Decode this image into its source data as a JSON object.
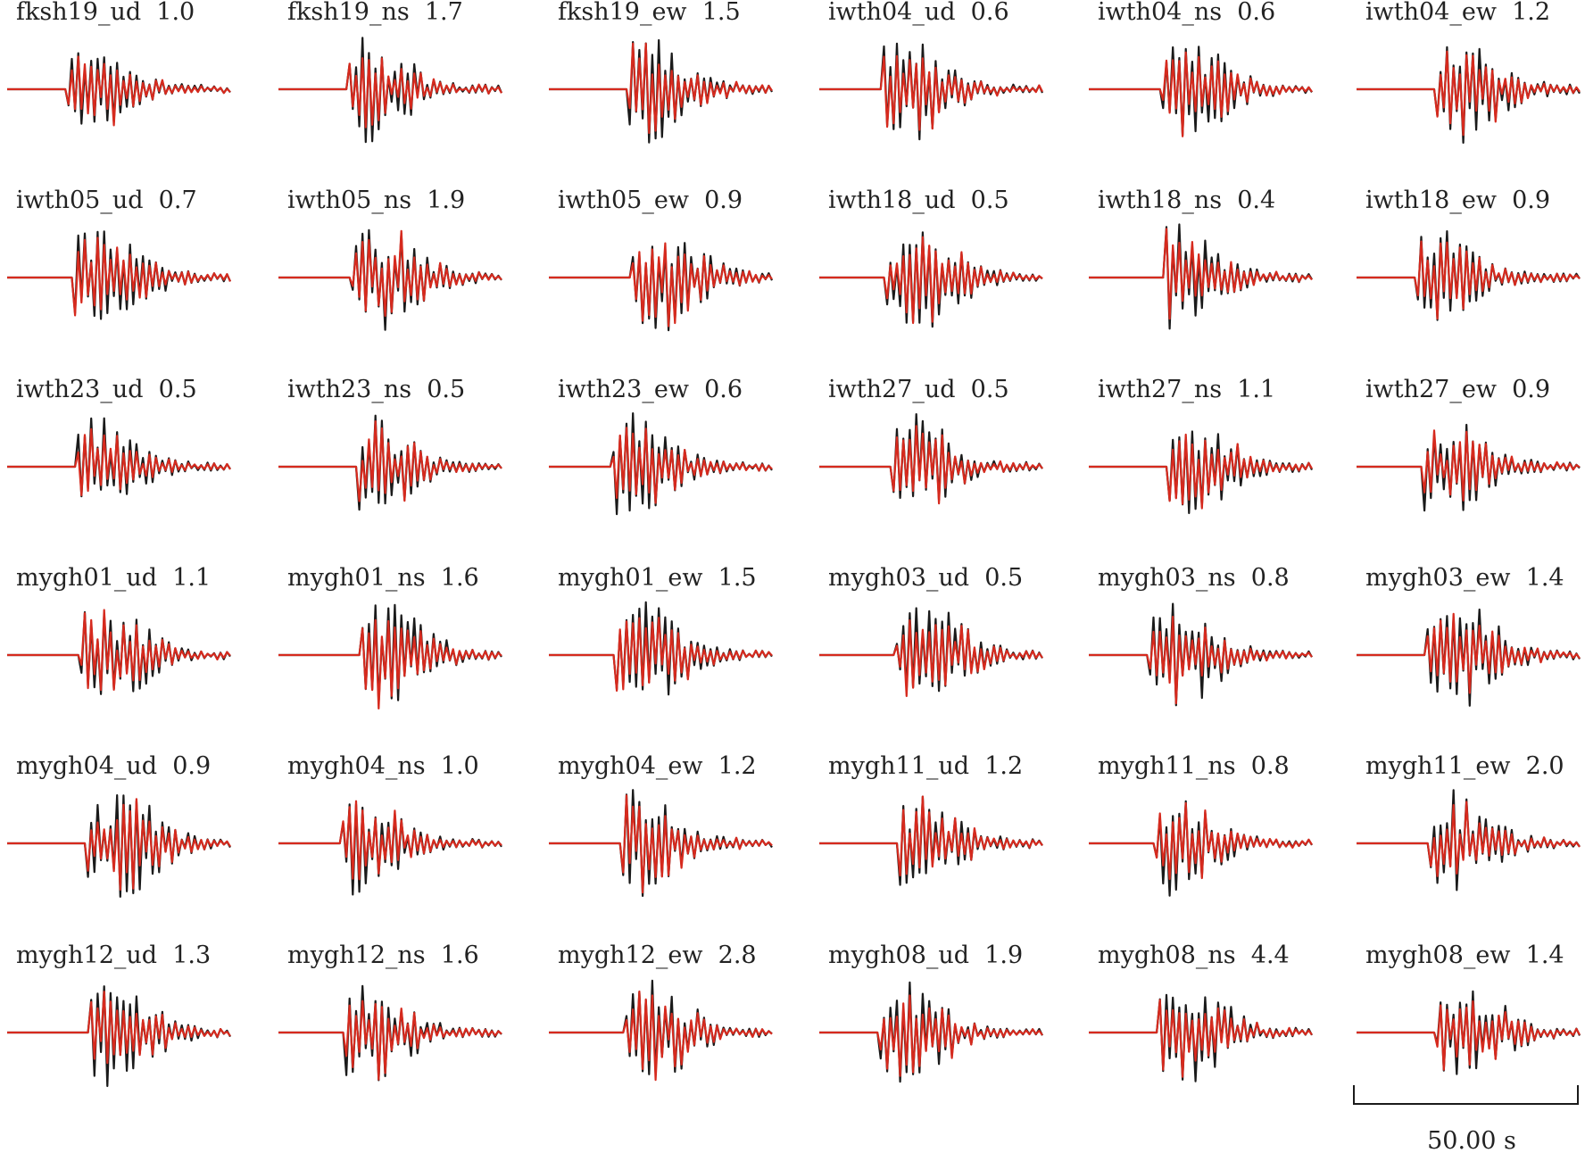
{
  "chart_data": {
    "type": "line",
    "description_of_series": "each panel overlays an observed waveform and a synthetic waveform",
    "colors": {
      "observed": "#1a1a1a",
      "synthetic": "#d62a1e"
    },
    "panels": [
      {
        "station": "fksh19",
        "component": "ud",
        "amplitude": "1.0"
      },
      {
        "station": "fksh19",
        "component": "ns",
        "amplitude": "1.7"
      },
      {
        "station": "fksh19",
        "component": "ew",
        "amplitude": "1.5"
      },
      {
        "station": "iwth04",
        "component": "ud",
        "amplitude": "0.6"
      },
      {
        "station": "iwth04",
        "component": "ns",
        "amplitude": "0.6"
      },
      {
        "station": "iwth04",
        "component": "ew",
        "amplitude": "1.2"
      },
      {
        "station": "iwth05",
        "component": "ud",
        "amplitude": "0.7"
      },
      {
        "station": "iwth05",
        "component": "ns",
        "amplitude": "1.9"
      },
      {
        "station": "iwth05",
        "component": "ew",
        "amplitude": "0.9"
      },
      {
        "station": "iwth18",
        "component": "ud",
        "amplitude": "0.5"
      },
      {
        "station": "iwth18",
        "component": "ns",
        "amplitude": "0.4"
      },
      {
        "station": "iwth18",
        "component": "ew",
        "amplitude": "0.9"
      },
      {
        "station": "iwth23",
        "component": "ud",
        "amplitude": "0.5"
      },
      {
        "station": "iwth23",
        "component": "ns",
        "amplitude": "0.5"
      },
      {
        "station": "iwth23",
        "component": "ew",
        "amplitude": "0.6"
      },
      {
        "station": "iwth27",
        "component": "ud",
        "amplitude": "0.5"
      },
      {
        "station": "iwth27",
        "component": "ns",
        "amplitude": "1.1"
      },
      {
        "station": "iwth27",
        "component": "ew",
        "amplitude": "0.9"
      },
      {
        "station": "mygh01",
        "component": "ud",
        "amplitude": "1.1"
      },
      {
        "station": "mygh01",
        "component": "ns",
        "amplitude": "1.6"
      },
      {
        "station": "mygh01",
        "component": "ew",
        "amplitude": "1.5"
      },
      {
        "station": "mygh03",
        "component": "ud",
        "amplitude": "0.5"
      },
      {
        "station": "mygh03",
        "component": "ns",
        "amplitude": "0.8"
      },
      {
        "station": "mygh03",
        "component": "ew",
        "amplitude": "1.4"
      },
      {
        "station": "mygh04",
        "component": "ud",
        "amplitude": "0.9"
      },
      {
        "station": "mygh04",
        "component": "ns",
        "amplitude": "1.0"
      },
      {
        "station": "mygh04",
        "component": "ew",
        "amplitude": "1.2"
      },
      {
        "station": "mygh11",
        "component": "ud",
        "amplitude": "1.2"
      },
      {
        "station": "mygh11",
        "component": "ns",
        "amplitude": "0.8"
      },
      {
        "station": "mygh11",
        "component": "ew",
        "amplitude": "2.0"
      },
      {
        "station": "mygh12",
        "component": "ud",
        "amplitude": "1.3"
      },
      {
        "station": "mygh12",
        "component": "ns",
        "amplitude": "1.6"
      },
      {
        "station": "mygh12",
        "component": "ew",
        "amplitude": "2.8"
      },
      {
        "station": "mygh08",
        "component": "ud",
        "amplitude": "1.9"
      },
      {
        "station": "mygh08",
        "component": "ns",
        "amplitude": "4.4"
      },
      {
        "station": "mygh08",
        "component": "ew",
        "amplitude": "1.4"
      }
    ],
    "scale_bar": {
      "value": 50.0,
      "label": "50.00 s"
    }
  }
}
